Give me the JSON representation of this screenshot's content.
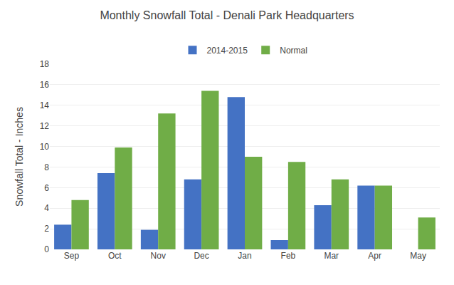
{
  "chart_data": {
    "type": "bar",
    "title": "Monthly Snowfall Total - Denali Park Headquarters",
    "ylabel": "Snowfall Total - Inches",
    "categories": [
      "Sep",
      "Oct",
      "Nov",
      "Dec",
      "Jan",
      "Feb",
      "Mar",
      "Apr",
      "May"
    ],
    "series": [
      {
        "name": "2014-2015",
        "color": "#4472C4",
        "values": [
          2.4,
          7.4,
          1.9,
          6.8,
          14.8,
          0.9,
          4.3,
          6.2,
          0.0
        ]
      },
      {
        "name": "Normal",
        "color": "#70AD47",
        "values": [
          4.8,
          9.9,
          13.2,
          15.4,
          9.0,
          8.5,
          6.8,
          6.2,
          3.1
        ]
      }
    ],
    "ylim": [
      0,
      18
    ],
    "yticks": [
      0,
      2,
      4,
      6,
      8,
      10,
      12,
      14,
      16,
      18
    ],
    "grid": true,
    "legend": "top"
  }
}
